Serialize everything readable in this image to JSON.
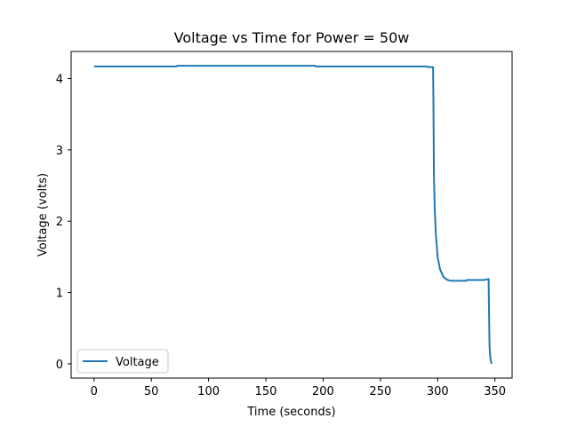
{
  "chart_data": {
    "type": "line",
    "title": "Voltage vs Time for Power = 50w",
    "xlabel": "Time (seconds)",
    "ylabel": "Voltage (volts)",
    "xlim": [
      -20,
      365
    ],
    "ylim": [
      -0.2,
      4.38
    ],
    "xticks": [
      0,
      50,
      100,
      150,
      200,
      250,
      300,
      350
    ],
    "yticks": [
      0,
      1,
      2,
      3,
      4
    ],
    "grid": false,
    "legend_position": "lower-left",
    "series": [
      {
        "name": "Voltage",
        "color": "#1f77b4",
        "x": [
          0,
          72,
          72.5,
          193,
          193.5,
          291,
          291.5,
          296,
          296.3,
          296.8,
          297.5,
          298.5,
          300,
          302,
          305,
          308,
          311,
          315,
          320,
          325,
          325.5,
          340,
          342,
          344.5,
          344.8,
          345.3,
          346,
          347
        ],
        "y": [
          4.17,
          4.17,
          4.18,
          4.18,
          4.17,
          4.17,
          4.16,
          4.16,
          3.7,
          2.6,
          2.15,
          1.8,
          1.5,
          1.33,
          1.22,
          1.18,
          1.165,
          1.165,
          1.165,
          1.165,
          1.175,
          1.175,
          1.18,
          1.19,
          0.8,
          0.25,
          0.08,
          0.0
        ]
      }
    ]
  }
}
